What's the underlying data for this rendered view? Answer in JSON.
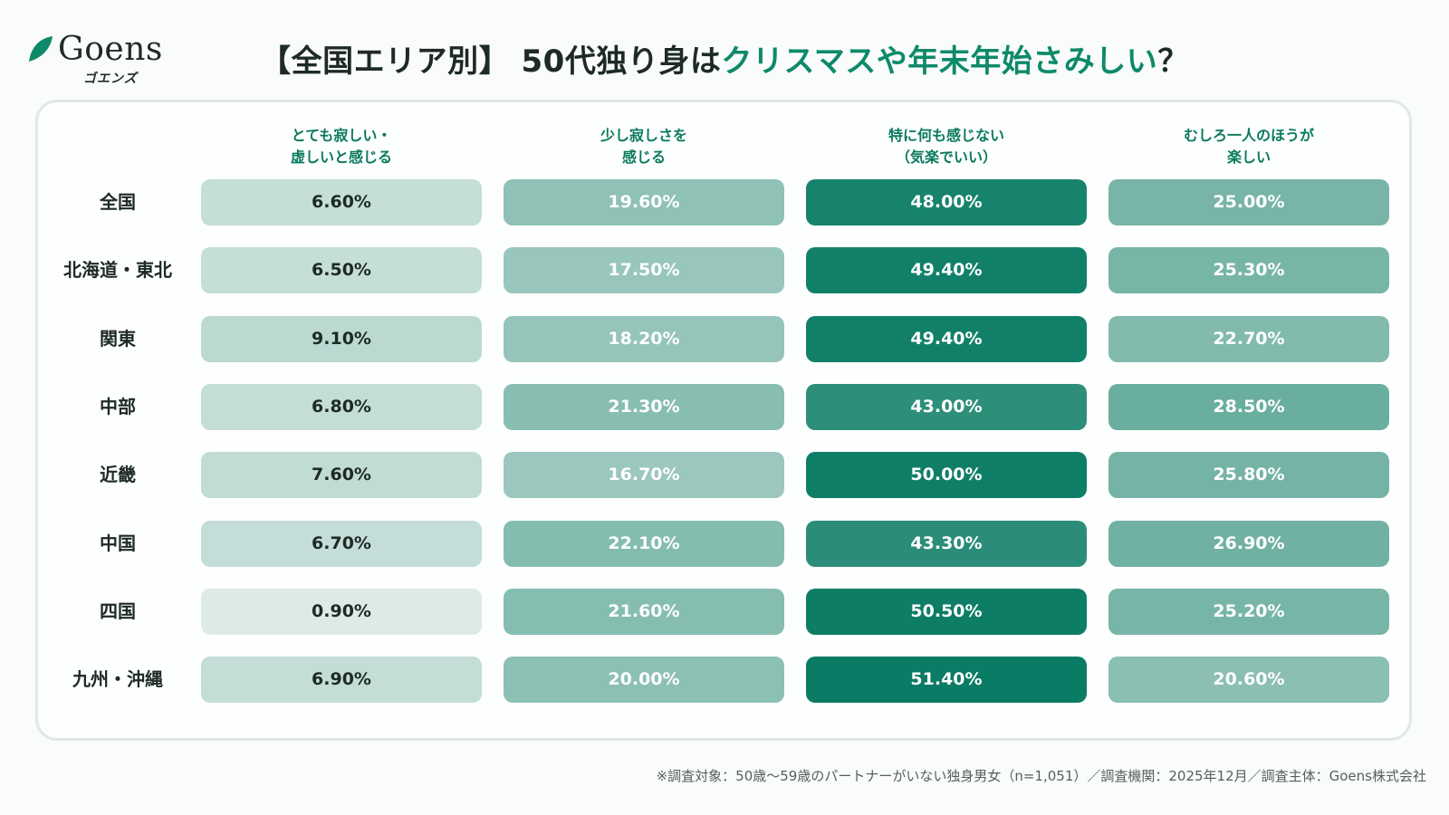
{
  "logo": {
    "wordmark": "Goens",
    "kana": "ゴエンズ"
  },
  "title": {
    "prefix": "【全国エリア別】 50代独り身は",
    "highlight": "クリスマスや年末年始さみしい",
    "suffix": "？"
  },
  "colors": {
    "accent": "#0d8a6a",
    "dark_cell": "#077a62",
    "light_cell": "#e1ece9"
  },
  "chart_data": {
    "type": "table",
    "title": "【全国エリア別】 50代独り身はクリスマスや年末年始さみしい？",
    "columns": [
      {
        "lines": [
          "とても寂しい・",
          "虚しいと感じる"
        ]
      },
      {
        "lines": [
          "少し寂しさを",
          "感じる"
        ]
      },
      {
        "lines": [
          "特に何も感じない",
          "（気楽でいい）"
        ]
      },
      {
        "lines": [
          "むしろ一人のほうが",
          "楽しい"
        ]
      }
    ],
    "rows": [
      {
        "label": "全国",
        "values": [
          6.6,
          19.6,
          48.0,
          25.0
        ],
        "display": [
          "6.60%",
          "19.60%",
          "48.00%",
          "25.00%"
        ]
      },
      {
        "label": "北海道・東北",
        "values": [
          6.5,
          17.5,
          49.4,
          25.3
        ],
        "display": [
          "6.50%",
          "17.50%",
          "49.40%",
          "25.30%"
        ]
      },
      {
        "label": "関東",
        "values": [
          9.1,
          18.2,
          49.4,
          22.7
        ],
        "display": [
          "9.10%",
          "18.20%",
          "49.40%",
          "22.70%"
        ]
      },
      {
        "label": "中部",
        "values": [
          6.8,
          21.3,
          43.0,
          28.5
        ],
        "display": [
          "6.80%",
          "21.30%",
          "43.00%",
          "28.50%"
        ]
      },
      {
        "label": "近畿",
        "values": [
          7.6,
          16.7,
          50.0,
          25.8
        ],
        "display": [
          "7.60%",
          "16.70%",
          "50.00%",
          "25.80%"
        ]
      },
      {
        "label": "中国",
        "values": [
          6.7,
          22.1,
          43.3,
          26.9
        ],
        "display": [
          "6.70%",
          "22.10%",
          "43.30%",
          "26.90%"
        ]
      },
      {
        "label": "四国",
        "values": [
          0.9,
          21.6,
          50.5,
          25.2
        ],
        "display": [
          "0.90%",
          "21.60%",
          "50.50%",
          "25.20%"
        ]
      },
      {
        "label": "九州・沖縄",
        "values": [
          6.9,
          20.0,
          51.4,
          20.6
        ],
        "display": [
          "6.90%",
          "20.00%",
          "51.40%",
          "20.60%"
        ]
      }
    ],
    "unit": "%"
  },
  "footnote": "※調査対象：50歳〜59歳のパートナーがいない独身男女（n=1,051）／調査機関：2025年12月／調査主体：Goens株式会社"
}
